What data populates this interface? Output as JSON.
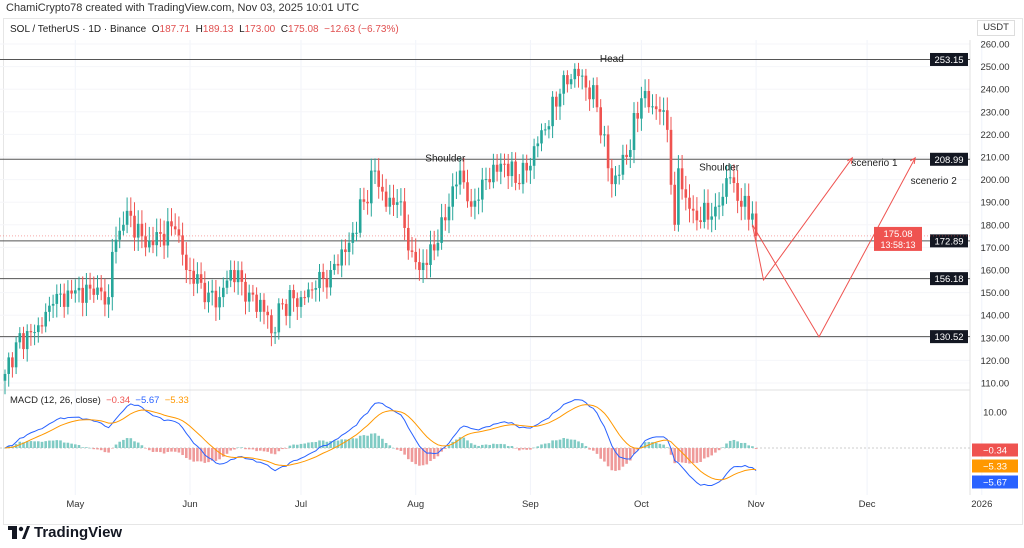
{
  "credit": "ChamiCrypto78 created with TradingView.com, Nov 03, 2025 10:01 UTC",
  "legend": {
    "symbol": "SOL / TetherUS · 1D · Binance",
    "o_label": "O",
    "o": "187.71",
    "h_label": "H",
    "h": "189.13",
    "l_label": "L",
    "l": "173.00",
    "c_label": "C",
    "c": "175.08",
    "change": "−12.63 (−6.73%)"
  },
  "macd_legend": {
    "title": "MACD (12, 26, close)",
    "hist": "−0.34",
    "macd": "−5.67",
    "signal": "−5.33"
  },
  "currency": "USDT",
  "brand": "TradingView",
  "colors": {
    "up": "#26a69a",
    "down": "#ef5350",
    "macd": "#2962ff",
    "signal": "#ff9800",
    "scenario": "#ef5350"
  },
  "chart_data": {
    "type": "candlestick",
    "title": "SOL / TetherUS · 1D · Binance",
    "ylim": [
      110,
      260
    ],
    "y_ticks": [
      "260.00",
      "250.00",
      "240.00",
      "230.00",
      "220.00",
      "210.00",
      "200.00",
      "190.00",
      "180.00",
      "170.00",
      "160.00",
      "150.00",
      "140.00",
      "130.00",
      "120.00",
      "110.00"
    ],
    "x_ticks": [
      {
        "label": "May",
        "day": 19
      },
      {
        "label": "Jun",
        "day": 50
      },
      {
        "label": "Jul",
        "day": 80
      },
      {
        "label": "Aug",
        "day": 111
      },
      {
        "label": "Sep",
        "day": 142
      },
      {
        "label": "Oct",
        "day": 172
      },
      {
        "label": "Nov",
        "day": 203
      },
      {
        "label": "Dec",
        "day": 233
      },
      {
        "label": "2026",
        "day": 264
      }
    ],
    "close_path_day_price": [
      [
        0,
        114
      ],
      [
        3,
        128
      ],
      [
        10,
        135
      ],
      [
        13,
        145
      ],
      [
        19,
        151
      ],
      [
        24,
        149
      ],
      [
        28,
        148
      ],
      [
        29,
        168
      ],
      [
        32,
        180
      ],
      [
        34,
        184
      ],
      [
        38,
        170
      ],
      [
        42,
        176
      ],
      [
        46,
        178
      ],
      [
        49,
        160
      ],
      [
        55,
        150
      ],
      [
        58,
        148
      ],
      [
        61,
        160
      ],
      [
        66,
        150
      ],
      [
        71,
        140
      ],
      [
        72,
        132
      ],
      [
        75,
        145
      ],
      [
        80,
        148
      ],
      [
        84,
        152
      ],
      [
        88,
        160
      ],
      [
        93,
        172
      ],
      [
        100,
        204
      ],
      [
        103,
        188
      ],
      [
        106,
        190
      ],
      [
        110,
        168
      ],
      [
        112,
        160
      ],
      [
        117,
        172
      ],
      [
        120,
        188
      ],
      [
        123,
        204
      ],
      [
        126,
        188
      ],
      [
        129,
        200
      ],
      [
        135,
        207
      ],
      [
        139,
        198
      ],
      [
        144,
        216
      ],
      [
        150,
        238
      ],
      [
        154,
        249
      ],
      [
        156,
        246
      ],
      [
        160,
        232
      ],
      [
        164,
        198
      ],
      [
        168,
        210
      ],
      [
        172,
        236
      ],
      [
        177,
        230
      ],
      [
        179,
        222
      ],
      [
        181,
        180
      ],
      [
        182,
        205
      ],
      [
        184,
        192
      ],
      [
        187,
        182
      ],
      [
        192,
        188
      ],
      [
        196,
        201
      ],
      [
        199,
        188
      ],
      [
        202,
        185
      ],
      [
        203,
        175
      ]
    ],
    "levels": [
      {
        "label": "253.15",
        "value": 253.15
      },
      {
        "label": "208.99",
        "value": 208.99
      },
      {
        "label": "172.89",
        "value": 172.89
      },
      {
        "label": "156.18",
        "value": 156.18
      },
      {
        "label": "130.52",
        "value": 130.52
      }
    ],
    "last_price": {
      "value": 175.08,
      "label": "175.08",
      "countdown": "13:58:13"
    },
    "annotations": [
      {
        "text": "Head",
        "day": 164,
        "price": 252
      },
      {
        "text": "Shoulder",
        "day": 119,
        "price": 208
      },
      {
        "text": "Shoulder",
        "day": 193,
        "price": 204
      },
      {
        "text": "scenerio 1",
        "day": 235,
        "price": 206
      },
      {
        "text": "scenerio 2",
        "day": 251,
        "price": 198
      }
    ],
    "scenarios": [
      {
        "name": "scenerio 1",
        "path": [
          [
            202,
            180
          ],
          [
            205,
            155.6
          ],
          [
            229,
            209.6
          ]
        ]
      },
      {
        "name": "scenerio 2",
        "path": [
          [
            202,
            180
          ],
          [
            220,
            130.4
          ],
          [
            246,
            209.6
          ]
        ]
      }
    ],
    "macd": {
      "params": "12, 26, close",
      "ylim_label": "10.00",
      "last_hist": {
        "value": -0.34,
        "label": "−0.34"
      },
      "last_signal": {
        "value": -5.33,
        "label": "−5.33"
      },
      "last_macd": {
        "value": -5.67,
        "label": "−5.67"
      }
    }
  }
}
